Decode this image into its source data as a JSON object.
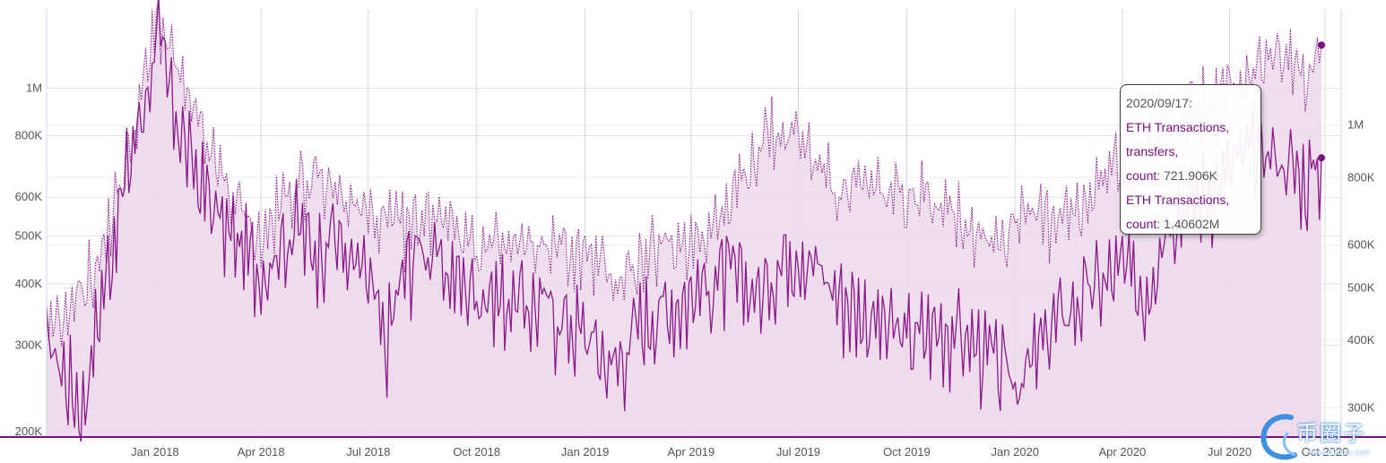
{
  "chart_data": {
    "type": "area",
    "y_scale": "log",
    "grid": true,
    "legend": "none",
    "x_ticks": [
      "Jan 2018",
      "Apr 2018",
      "Jul 2018",
      "Oct 2018",
      "Jan 2019",
      "Apr 2019",
      "Jul 2019",
      "Oct 2019",
      "Jan 2020",
      "Apr 2020",
      "Jul 2020",
      "Oct 2020"
    ],
    "x_range": [
      "2017-10-01",
      "2020-09-17"
    ],
    "left_axis": {
      "ticks": [
        "200K",
        "300K",
        "400K",
        "500K",
        "600K",
        "800K",
        "1M"
      ],
      "range": [
        195000,
        1450000
      ]
    },
    "right_axis": {
      "ticks": [
        "300K",
        "400K",
        "500K",
        "600K",
        "800K",
        "1M"
      ],
      "range": [
        265000,
        1640000
      ]
    },
    "colors": {
      "series_line": "#8a1a8a",
      "area_fill": "#ecd9eb",
      "axis": "#7a1280"
    },
    "series": [
      {
        "name": "ETH Transactions, transfers, count",
        "axis": "left",
        "style": "solid",
        "x": [
          "2017-10-01",
          "2017-11-01",
          "2017-11-15",
          "2017-12-01",
          "2017-12-15",
          "2018-01-04",
          "2018-01-15",
          "2018-02-01",
          "2018-03-01",
          "2018-04-01",
          "2018-05-01",
          "2018-05-15",
          "2018-06-01",
          "2018-06-15",
          "2018-07-01",
          "2018-07-15",
          "2018-08-01",
          "2018-08-15",
          "2018-09-01",
          "2018-10-01",
          "2018-11-01",
          "2018-12-01",
          "2018-12-20",
          "2019-01-01",
          "2019-01-25",
          "2019-02-15",
          "2019-03-01",
          "2019-04-01",
          "2019-05-01",
          "2019-06-01",
          "2019-06-15",
          "2019-07-01",
          "2019-08-01",
          "2019-09-01",
          "2019-10-01",
          "2019-11-01",
          "2019-12-01",
          "2019-12-25",
          "2020-01-10",
          "2020-02-01",
          "2020-03-01",
          "2020-04-01",
          "2020-04-20",
          "2020-05-10",
          "2020-06-01",
          "2020-06-20",
          "2020-07-10",
          "2020-08-01",
          "2020-08-20",
          "2020-09-05",
          "2020-09-17"
        ],
        "values": [
          310000,
          225000,
          360000,
          560000,
          800000,
          1250000,
          950000,
          700000,
          520000,
          430000,
          530000,
          470000,
          520000,
          440000,
          410000,
          300000,
          430000,
          490000,
          430000,
          390000,
          370000,
          360000,
          330000,
          320000,
          270000,
          330000,
          350000,
          380000,
          420000,
          380000,
          450000,
          480000,
          390000,
          340000,
          310000,
          330000,
          300000,
          260000,
          260000,
          330000,
          380000,
          430000,
          380000,
          560000,
          600000,
          640000,
          720000,
          760000,
          700000,
          650000,
          721906
        ]
      },
      {
        "name": "ETH Transactions, count",
        "axis": "right",
        "style": "dotted",
        "x": [
          "2017-10-01",
          "2017-11-15",
          "2017-12-15",
          "2018-01-04",
          "2018-02-01",
          "2018-03-01",
          "2018-04-01",
          "2018-05-01",
          "2018-06-01",
          "2018-07-01",
          "2018-08-01",
          "2018-09-01",
          "2018-10-01",
          "2018-11-01",
          "2018-12-01",
          "2019-01-01",
          "2019-01-25",
          "2019-03-01",
          "2019-04-01",
          "2019-05-01",
          "2019-06-01",
          "2019-07-01",
          "2019-08-01",
          "2019-09-01",
          "2019-10-01",
          "2019-11-01",
          "2019-12-01",
          "2019-12-25",
          "2020-01-10",
          "2020-02-01",
          "2020-03-01",
          "2020-04-01",
          "2020-05-01",
          "2020-06-01",
          "2020-07-01",
          "2020-08-01",
          "2020-08-20",
          "2020-09-05",
          "2020-09-17"
        ],
        "values": [
          400000,
          560000,
          1000000,
          1600000,
          1050000,
          780000,
          610000,
          800000,
          760000,
          680000,
          640000,
          710000,
          590000,
          590000,
          600000,
          580000,
          520000,
          580000,
          620000,
          690000,
          960000,
          960000,
          770000,
          760000,
          730000,
          740000,
          640000,
          620000,
          740000,
          640000,
          720000,
          880000,
          1000000,
          1080000,
          1150000,
          1340000,
          1300000,
          1200000,
          1406020
        ]
      }
    ]
  },
  "tooltip": {
    "date": "2020/09/17:",
    "series1_line1": "ETH Transactions,",
    "series1_line2": "transfers,",
    "series1_label": "count",
    "series1_value": "721.906K",
    "series2_line1": "ETH Transactions,",
    "series2_label": "count",
    "series2_value": "1.40602M"
  },
  "watermark": {
    "text": "币圈子",
    "url": "www.120btc.com"
  }
}
